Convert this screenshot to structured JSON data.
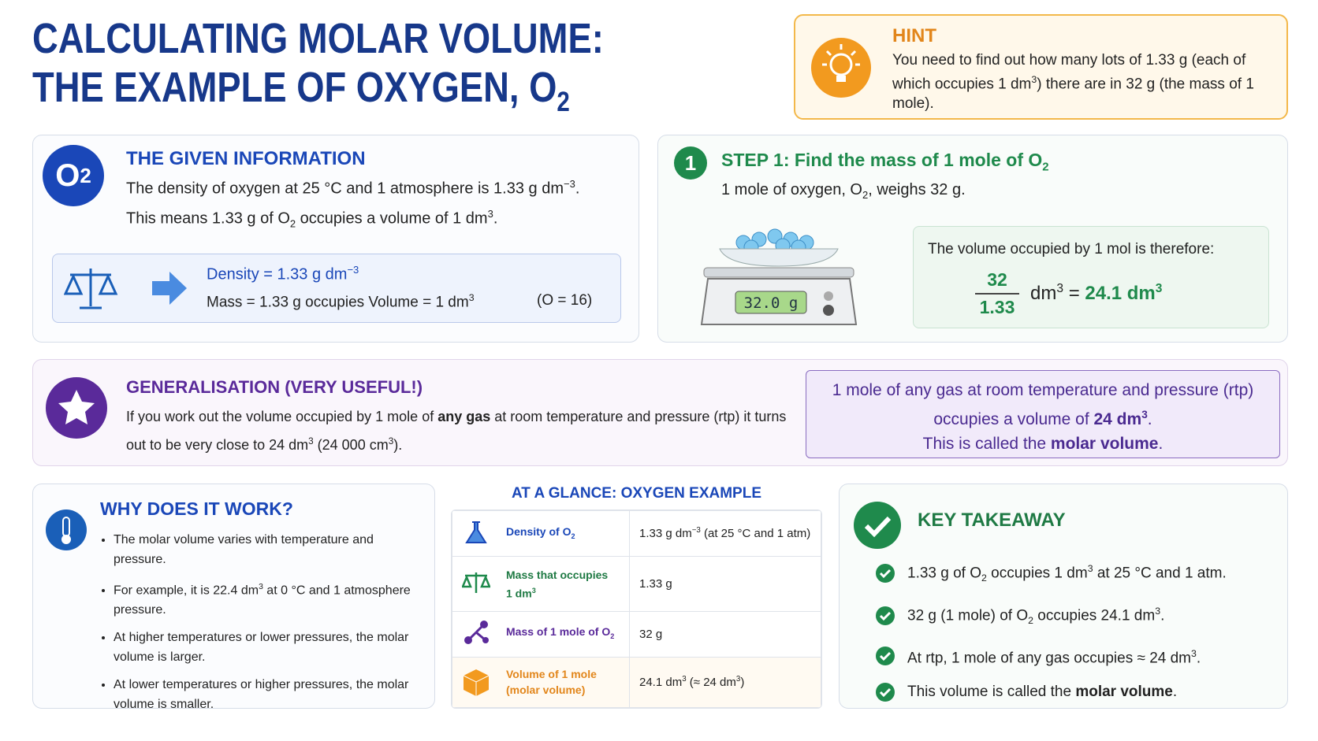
{
  "title": {
    "line1": "CALCULATING MOLAR VOLUME:",
    "line2": [
      "THE EXAMPLE OF OXYGEN, O",
      "2"
    ]
  },
  "hint": {
    "heading": "HINT",
    "text": [
      "You need to find out how many lots of 1.33 g (each of which occupies 1 dm",
      "3",
      ") there are in 32 g (the mass of 1 mole)."
    ]
  },
  "given": {
    "icon": [
      "O",
      "2"
    ],
    "heading": "THE GIVEN INFORMATION",
    "line1": [
      "The density of oxygen at 25 °C and 1 atmosphere is 1.33 g dm",
      "−3",
      "."
    ],
    "line2": [
      "This means 1.33 g of O",
      "2",
      " occupies a volume of 1 dm",
      "3",
      "."
    ],
    "density": [
      "Density = 1.33 g dm",
      "−3"
    ],
    "mass": [
      "Mass = 1.33 g occupies Volume = 1 dm",
      "3"
    ],
    "atomic_mass": "(O = 16)"
  },
  "step1": {
    "number": "1",
    "heading": [
      "STEP 1: Find the mass of 1 mole of O",
      "2"
    ],
    "text": [
      "1 mole of oxygen, O",
      "2",
      ", weighs 32 g."
    ],
    "scale_display": "32.0 g",
    "result_intro": "The volume occupied by 1 mol is therefore:",
    "numerator": "32",
    "denominator": "1.33",
    "result": [
      "dm",
      "3",
      " = ",
      "24.1 dm",
      "3"
    ]
  },
  "generalisation": {
    "heading": "GENERALISATION (VERY USEFUL!)",
    "text": [
      "If you work out the volume occupied by 1 mole of ",
      "any gas",
      " at room temperature and pressure (rtp) it turns out to be very close to 24 dm",
      "3",
      " (24 000 cm",
      "3",
      ")."
    ],
    "box_line1": [
      "1 mole of any gas at room temperature and pressure (rtp) occupies a volume of ",
      "24 dm",
      "3",
      "."
    ],
    "box_line2": [
      "This is called the ",
      "molar volume",
      "."
    ]
  },
  "why": {
    "heading": "WHY DOES IT WORK?",
    "bullets": [
      [
        "The molar volume varies with temperature and pressure."
      ],
      [
        "For example, it is 22.4 dm",
        "3",
        " at 0 °C and 1 atmosphere pressure."
      ],
      [
        "At higher temperatures or lower pressures, the molar volume is larger."
      ],
      [
        "At lower temperatures or higher pressures, the molar volume is smaller."
      ]
    ]
  },
  "table": {
    "title": "AT A GLANCE: OXYGEN EXAMPLE",
    "rows": [
      [
        [
          "Density of O",
          "2"
        ],
        [
          "1.33 g dm",
          "−3",
          " (at 25 °C and 1 atm)"
        ]
      ],
      [
        [
          "Mass that occupies 1 dm",
          "3"
        ],
        [
          "1.33 g"
        ]
      ],
      [
        [
          "Mass of 1 mole of O",
          "2"
        ],
        [
          "32 g"
        ]
      ],
      [
        [
          "Volume of 1 mole (molar volume)"
        ],
        [
          "24.1 dm",
          "3",
          " (≈ 24 dm",
          "3",
          ")"
        ]
      ]
    ]
  },
  "takeaway": {
    "heading": "KEY TAKEAWAY",
    "items": [
      [
        "1.33 g of O",
        "2",
        " occupies 1 dm",
        "3",
        " at 25 °C and 1 atm."
      ],
      [
        "32 g (1 mole) of O",
        "2",
        " occupies 24.1 dm",
        "3",
        "."
      ],
      [
        "At rtp, 1 mole of any gas occupies ≈ 24 dm",
        "3",
        "."
      ],
      [
        "This volume is called the ",
        "molar volume",
        "."
      ]
    ]
  }
}
